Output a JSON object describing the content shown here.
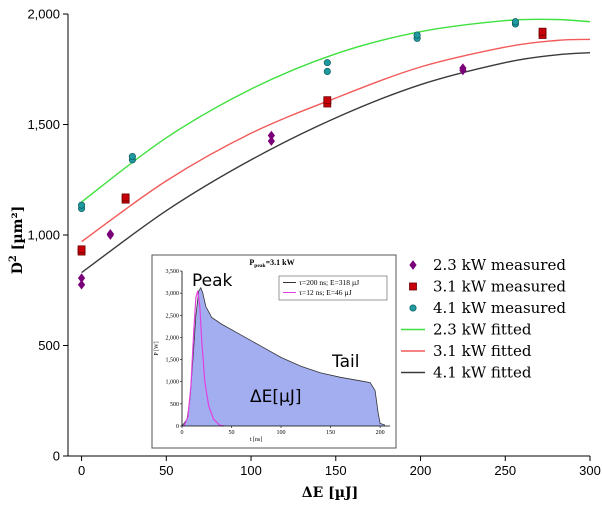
{
  "chart_data": {
    "type": "scatter",
    "xlabel": "ΔE [µJ]",
    "ylabel_main": "D",
    "ylabel_sup": "2",
    "ylabel_unit": "[µm²]",
    "xlim": [
      -8,
      300
    ],
    "ylim": [
      0,
      2000
    ],
    "xticks": [
      0,
      50,
      100,
      150,
      200,
      250,
      300
    ],
    "yticks": [
      0,
      500,
      1000,
      1500,
      2000
    ],
    "ytick_labels": [
      "0",
      "500",
      "1,000",
      "1,500",
      "2,000"
    ],
    "measured_series": [
      {
        "name": "2.3 kW measured",
        "color": "#7a007a",
        "marker": "diamond",
        "points": [
          [
            0,
            775
          ],
          [
            0,
            805
          ],
          [
            17,
            1000
          ],
          [
            17,
            1005
          ],
          [
            112,
            1425
          ],
          [
            112,
            1450
          ],
          [
            225,
            1745
          ],
          [
            225,
            1755
          ]
        ]
      },
      {
        "name": "3.1 kW measured",
        "color": "#c8000a",
        "marker": "square",
        "points": [
          [
            0,
            925
          ],
          [
            0,
            935
          ],
          [
            26,
            1160
          ],
          [
            26,
            1170
          ],
          [
            145,
            1595
          ],
          [
            145,
            1610
          ],
          [
            272,
            1905
          ],
          [
            272,
            1920
          ]
        ]
      },
      {
        "name": "4.1 kW measured",
        "color": "#1f9aa0",
        "marker": "circle",
        "points": [
          [
            0,
            1120
          ],
          [
            0,
            1135
          ],
          [
            30,
            1340
          ],
          [
            30,
            1355
          ],
          [
            145,
            1740
          ],
          [
            145,
            1780
          ],
          [
            198,
            1890
          ],
          [
            198,
            1905
          ],
          [
            256,
            1955
          ],
          [
            256,
            1965
          ]
        ]
      }
    ],
    "fitted_series": [
      {
        "name": "2.3 kW fitted",
        "color": "#3fe03f",
        "points": [
          [
            0,
            1150
          ],
          [
            50,
            1440
          ],
          [
            100,
            1660
          ],
          [
            150,
            1820
          ],
          [
            200,
            1920
          ],
          [
            250,
            1970
          ],
          [
            280,
            1975
          ],
          [
            300,
            1965
          ]
        ]
      },
      {
        "name": "3.1 kW fitted",
        "color": "#f25a5a",
        "points": [
          [
            0,
            970
          ],
          [
            50,
            1245
          ],
          [
            100,
            1460
          ],
          [
            150,
            1620
          ],
          [
            200,
            1760
          ],
          [
            250,
            1850
          ],
          [
            280,
            1880
          ],
          [
            300,
            1885
          ]
        ]
      },
      {
        "name": "4.1 kW fitted",
        "color": "#3a3a3a",
        "points": [
          [
            0,
            830
          ],
          [
            50,
            1110
          ],
          [
            100,
            1340
          ],
          [
            150,
            1530
          ],
          [
            200,
            1680
          ],
          [
            250,
            1780
          ],
          [
            280,
            1815
          ],
          [
            300,
            1825
          ]
        ]
      }
    ],
    "inset": {
      "title_main": "P",
      "title_sub": "peak",
      "title_rest": "=3.1 kW",
      "ylabel": "P [W]",
      "xlabel": "t [ns]",
      "xticks": [
        0,
        50,
        100,
        150,
        200
      ],
      "xlim": [
        0,
        210
      ],
      "ylim": [
        0,
        3500
      ],
      "yticks": [
        0,
        500,
        1000,
        1500,
        2000,
        2500,
        3000,
        3500
      ],
      "ytick_labels": [
        "0",
        "500",
        "1,000",
        "1,500",
        "2,000",
        "2,500",
        "3,000",
        "3,500"
      ],
      "legend": [
        {
          "label": "τ=200 ns; E=318 µJ",
          "color": "#333333"
        },
        {
          "label": "τ=12 ns; E=46 µJ",
          "color": "#e040e0"
        }
      ],
      "long_pulse": {
        "color": "#a3aef0",
        "points": [
          [
            0,
            0
          ],
          [
            5,
            150
          ],
          [
            8,
            600
          ],
          [
            11,
            1500
          ],
          [
            14,
            2500
          ],
          [
            17,
            3050
          ],
          [
            19,
            3120
          ],
          [
            21,
            3000
          ],
          [
            24,
            2700
          ],
          [
            30,
            2450
          ],
          [
            40,
            2300
          ],
          [
            60,
            2050
          ],
          [
            80,
            1800
          ],
          [
            100,
            1550
          ],
          [
            120,
            1350
          ],
          [
            140,
            1200
          ],
          [
            160,
            1100
          ],
          [
            180,
            1020
          ],
          [
            190,
            980
          ],
          [
            195,
            800
          ],
          [
            198,
            300
          ],
          [
            200,
            60
          ],
          [
            205,
            20
          ]
        ]
      },
      "short_pulse": {
        "color": "#e040e0",
        "points": [
          [
            2,
            0
          ],
          [
            6,
            200
          ],
          [
            9,
            900
          ],
          [
            12,
            2200
          ],
          [
            14,
            2900
          ],
          [
            16,
            3050
          ],
          [
            18,
            2700
          ],
          [
            20,
            1900
          ],
          [
            23,
            1000
          ],
          [
            27,
            450
          ],
          [
            32,
            150
          ],
          [
            38,
            20
          ],
          [
            42,
            0
          ]
        ]
      },
      "annotations": {
        "peak": "Peak",
        "tail": "Tail",
        "energy": "ΔE[µJ]"
      }
    }
  }
}
